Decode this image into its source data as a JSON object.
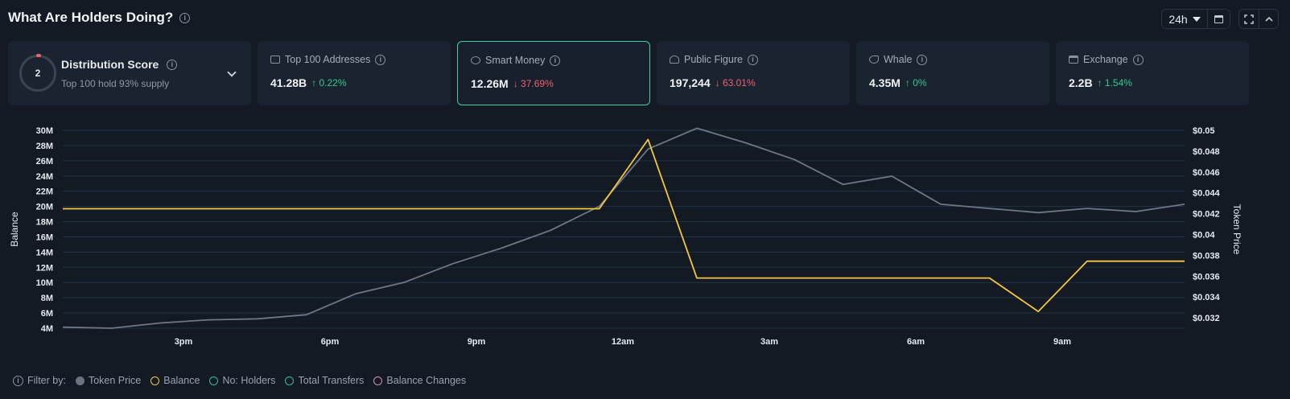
{
  "header": {
    "title": "What Are Holders Doing?"
  },
  "controls": {
    "range": "24h"
  },
  "distribution": {
    "score": "2",
    "title": "Distribution Score",
    "subtitle": "Top 100 hold 93% supply"
  },
  "metrics": [
    {
      "label": "Top 100 Addresses",
      "value": "41.28B",
      "change": "↑ 0.22%",
      "direction": "up"
    },
    {
      "label": "Smart Money",
      "value": "12.26M",
      "change": "↓ 37.69%",
      "direction": "down"
    },
    {
      "label": "Public Figure",
      "value": "197,244",
      "change": "↓ 63.01%",
      "direction": "down"
    },
    {
      "label": "Whale",
      "value": "4.35M",
      "change": "↑ 0%",
      "direction": "up"
    },
    {
      "label": "Exchange",
      "value": "2.2B",
      "change": "↑ 1.54%",
      "direction": "up"
    }
  ],
  "filters": {
    "label": "Filter by:",
    "items": [
      {
        "label": "Token Price",
        "color": "#6b7280",
        "filled": true
      },
      {
        "label": "Balance",
        "color": "#f5c542",
        "filled": false
      },
      {
        "label": "No: Holders",
        "color": "#2fbf8f",
        "filled": false
      },
      {
        "label": "Total Transfers",
        "color": "#2fbf8f",
        "filled": false
      },
      {
        "label": "Balance Changes",
        "color": "#d88fb0",
        "filled": false
      }
    ]
  },
  "chart_data": {
    "type": "line",
    "ylabel": "Balance",
    "y2label": "Token Price",
    "ylim": [
      4,
      30
    ],
    "y2lim": [
      0.031,
      0.05
    ],
    "yticks": [
      "30M",
      "28M",
      "26M",
      "24M",
      "22M",
      "20M",
      "18M",
      "16M",
      "14M",
      "12M",
      "10M",
      "8M",
      "6M",
      "4M"
    ],
    "y2ticks": [
      "$0.05",
      "$0.048",
      "$0.046",
      "$0.044",
      "$0.042",
      "$0.04",
      "$0.038",
      "$0.036",
      "$0.034",
      "$0.032"
    ],
    "xticks": [
      "3pm",
      "6pm",
      "9pm",
      "12am",
      "3am",
      "6am",
      "9am"
    ],
    "grid": true,
    "series": [
      {
        "name": "Token Price",
        "color": "#6f7785",
        "axis": "right",
        "x": [
          0,
          1,
          2,
          3,
          4,
          5,
          6,
          7,
          8,
          9,
          10,
          11,
          12,
          13,
          14,
          15,
          16,
          17,
          18,
          19,
          20,
          21,
          22,
          23
        ],
        "y": [
          0.0311,
          0.031,
          0.0315,
          0.0318,
          0.0319,
          0.0323,
          0.0343,
          0.0354,
          0.0372,
          0.0387,
          0.0404,
          0.0427,
          0.0482,
          0.0502,
          0.0488,
          0.0472,
          0.0448,
          0.0456,
          0.0429,
          0.0425,
          0.0421,
          0.0425,
          0.0422,
          0.0429
        ]
      },
      {
        "name": "Balance",
        "color": "#f5c542",
        "axis": "left",
        "x": [
          0,
          11,
          12,
          13,
          19,
          20,
          21,
          22,
          23
        ],
        "y": [
          19.7,
          19.7,
          28.8,
          10.6,
          10.6,
          6.2,
          12.8,
          12.8,
          12.8
        ]
      }
    ]
  }
}
